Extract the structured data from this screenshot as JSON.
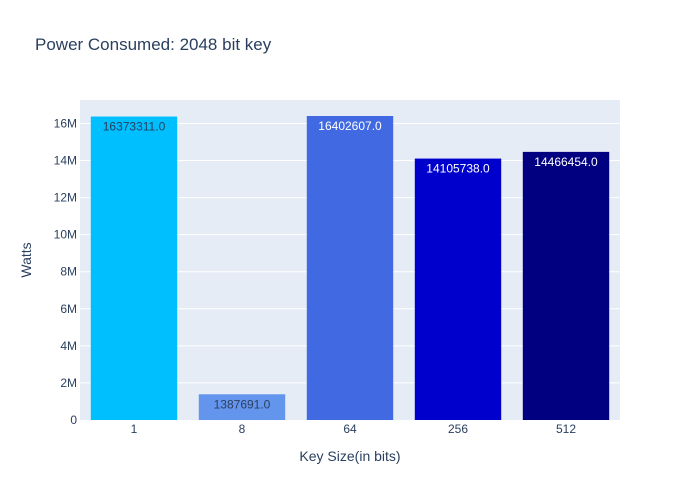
{
  "chart_data": {
    "type": "bar",
    "title": "Power Consumed: 2048 bit key",
    "xlabel": "Key Size(in bits)",
    "ylabel": "Watts",
    "categories": [
      "1",
      "8",
      "64",
      "256",
      "512"
    ],
    "values": [
      16373311.0,
      1387691.0,
      16402607.0,
      14105738.0,
      14466454.0
    ],
    "value_labels": [
      "16373311.0",
      "1387691.0",
      "16402607.0",
      "14105738.0",
      "14466454.0"
    ],
    "bar_colors": [
      "#00bfff",
      "#6495ed",
      "#4169e1",
      "#0000cd",
      "#000080"
    ],
    "label_colors": [
      "#2a3f5f",
      "#2a3f5f",
      "#ffffff",
      "#ffffff",
      "#ffffff"
    ],
    "ylim": [
      0,
      17265902
    ],
    "yticks": [
      0,
      2000000,
      4000000,
      6000000,
      8000000,
      10000000,
      12000000,
      14000000,
      16000000
    ],
    "ytick_labels": [
      "0",
      "2M",
      "4M",
      "6M",
      "8M",
      "10M",
      "12M",
      "14M",
      "16M"
    ],
    "grid": true,
    "legend": false,
    "plot_bgcolor": "#e5ecf6",
    "paper_bgcolor": "#ffffff"
  }
}
